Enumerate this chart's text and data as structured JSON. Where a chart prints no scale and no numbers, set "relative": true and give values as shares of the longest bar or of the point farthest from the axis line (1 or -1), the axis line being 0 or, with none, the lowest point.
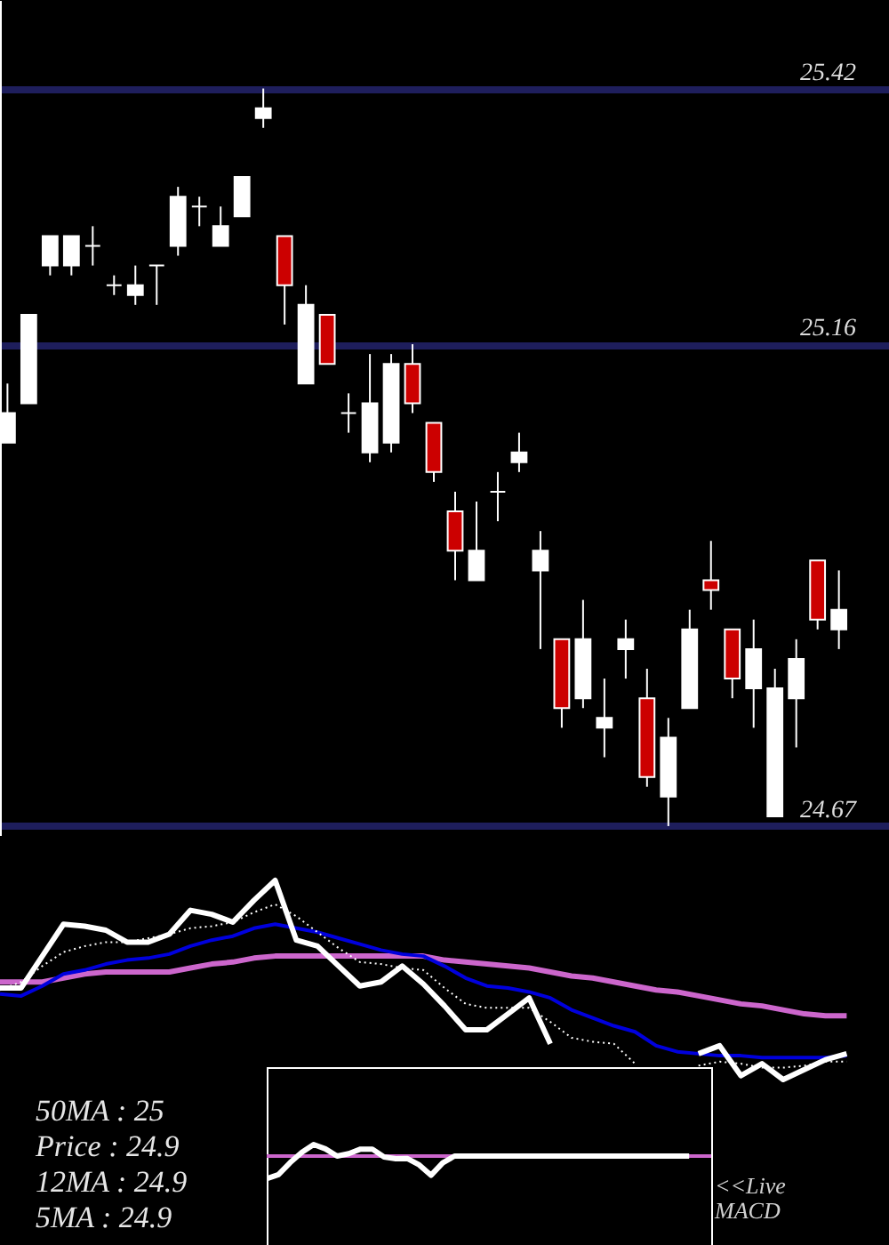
{
  "chart_data": [
    {
      "type": "candlestick",
      "categories": [
        null,
        null,
        null,
        null,
        null,
        null,
        null,
        null,
        null,
        null,
        null,
        null,
        null,
        null,
        null,
        null,
        null,
        null,
        null,
        null,
        null,
        null,
        null,
        null,
        null,
        null,
        null,
        null,
        null,
        null,
        null,
        null,
        null,
        null,
        null,
        null,
        null,
        null,
        null,
        null
      ],
      "ohlc": [
        [
          25.06,
          25.12,
          25.06,
          25.09
        ],
        [
          25.1,
          25.19,
          25.1,
          25.19
        ],
        [
          25.24,
          25.27,
          25.23,
          25.27
        ],
        [
          25.24,
          25.27,
          25.23,
          25.27
        ],
        [
          25.26,
          25.28,
          25.24,
          25.26
        ],
        [
          25.22,
          25.23,
          25.21,
          25.22
        ],
        [
          25.21,
          25.24,
          25.2,
          25.22
        ],
        [
          25.24,
          25.24,
          25.2,
          25.24
        ],
        [
          25.26,
          25.32,
          25.25,
          25.31
        ],
        [
          25.3,
          25.31,
          25.28,
          25.3
        ],
        [
          25.26,
          25.3,
          25.26,
          25.28
        ],
        [
          25.29,
          25.33,
          25.29,
          25.33
        ],
        [
          25.39,
          25.42,
          25.38,
          25.4
        ],
        [
          25.27,
          25.27,
          25.18,
          25.22
        ],
        [
          25.12,
          25.22,
          25.12,
          25.2
        ],
        [
          25.19,
          25.19,
          25.14,
          25.14
        ],
        [
          25.09,
          25.11,
          25.07,
          25.09
        ],
        [
          25.05,
          25.15,
          25.04,
          25.1
        ],
        [
          25.06,
          25.15,
          25.05,
          25.14
        ],
        [
          25.14,
          25.16,
          25.09,
          25.1
        ],
        [
          25.08,
          25.08,
          25.02,
          25.03
        ],
        [
          24.99,
          25.01,
          24.92,
          24.95
        ],
        [
          24.92,
          25.0,
          24.92,
          24.95
        ],
        [
          25.01,
          25.03,
          24.98,
          25.01
        ],
        [
          25.04,
          25.07,
          25.03,
          25.05
        ],
        [
          24.93,
          24.97,
          24.85,
          24.95
        ],
        [
          24.86,
          24.86,
          24.77,
          24.79
        ],
        [
          24.8,
          24.9,
          24.79,
          24.86
        ],
        [
          24.77,
          24.82,
          24.74,
          24.78
        ],
        [
          24.85,
          24.88,
          24.82,
          24.86
        ],
        [
          24.8,
          24.83,
          24.71,
          24.72
        ],
        [
          24.7,
          24.78,
          24.67,
          24.76
        ],
        [
          24.79,
          24.89,
          24.79,
          24.87
        ],
        [
          24.92,
          24.96,
          24.89,
          24.91
        ],
        [
          24.87,
          24.87,
          24.8,
          24.82
        ],
        [
          24.81,
          24.88,
          24.77,
          24.85
        ],
        [
          24.68,
          24.83,
          24.68,
          24.81
        ],
        [
          24.8,
          24.86,
          24.75,
          24.84
        ],
        [
          24.94,
          24.94,
          24.87,
          24.88
        ],
        [
          24.87,
          24.93,
          24.85,
          24.89
        ]
      ],
      "colors": [
        "#ffffff",
        "#ffffff",
        "#ffffff",
        "#ffffff",
        "#ffffff",
        "#ffffff",
        "#ffffff",
        "#ffffff",
        "#ffffff",
        "#ffffff",
        "#ffffff",
        "#ffffff",
        "#ffffff",
        "#cc0000",
        "#ffffff",
        "#cc0000",
        "#ffffff",
        "#ffffff",
        "#ffffff",
        "#cc0000",
        "#cc0000",
        "#cc0000",
        "#ffffff",
        "#ffffff",
        "#ffffff",
        "#ffffff",
        "#cc0000",
        "#ffffff",
        "#ffffff",
        "#ffffff",
        "#cc0000",
        "#ffffff",
        "#ffffff",
        "#cc0000",
        "#cc0000",
        "#ffffff",
        "#ffffff",
        "#ffffff",
        "#cc0000",
        "#ffffff"
      ],
      "ylim": [
        24.66,
        25.51
      ],
      "yticks": [
        24.67,
        25.16,
        25.42
      ],
      "grid": "y",
      "tick_labels": "y"
    },
    {
      "type": "line",
      "relative": true,
      "categories": [
        null,
        null,
        null,
        null,
        null,
        null,
        null,
        null,
        null,
        null,
        null,
        null,
        null,
        null,
        null,
        null,
        null,
        null,
        null,
        null,
        null,
        null,
        null,
        null,
        null,
        null,
        null,
        null,
        null,
        null,
        null,
        null,
        null,
        null,
        null,
        null,
        null,
        null,
        null,
        null,
        null
      ],
      "series": [
        {
          "color": "#cc66cc",
          "values": [
            0.49,
            0.49,
            0.49,
            0.51,
            0.53,
            0.54,
            0.54,
            0.54,
            0.54,
            0.56,
            0.58,
            0.59,
            0.61,
            0.62,
            0.62,
            0.62,
            0.62,
            0.62,
            0.62,
            0.62,
            0.62,
            0.6,
            0.59,
            0.58,
            0.57,
            0.56,
            0.54,
            0.52,
            0.51,
            0.49,
            0.47,
            0.45,
            0.44,
            0.42,
            0.4,
            0.38,
            0.37,
            0.35,
            0.33,
            0.32,
            0.32
          ]
        },
        {
          "color": "#0000dd",
          "values": [
            0.43,
            0.42,
            0.47,
            0.53,
            0.55,
            0.58,
            0.6,
            0.61,
            0.63,
            0.67,
            0.7,
            0.72,
            0.76,
            0.78,
            0.76,
            0.74,
            0.71,
            0.68,
            0.65,
            0.63,
            0.62,
            0.57,
            0.51,
            0.47,
            0.46,
            0.44,
            0.41,
            0.35,
            0.31,
            0.27,
            0.24,
            0.17,
            0.14,
            0.13,
            0.12,
            0.12,
            0.11,
            0.11,
            0.11,
            0.11,
            0.12
          ]
        },
        {
          "color": "#ffffff",
          "line_style": "dotted",
          "values": [
            0.45,
            0.49,
            0.57,
            0.64,
            0.67,
            0.69,
            0.69,
            0.71,
            0.73,
            0.76,
            0.77,
            0.79,
            0.84,
            0.88,
            0.82,
            0.74,
            0.66,
            0.59,
            0.58,
            0.56,
            0.55,
            0.46,
            0.38,
            0.36,
            0.36,
            0.36,
            0.29,
            0.21,
            0.19,
            0.18,
            0.08,
            null,
            null,
            0.07,
            0.09,
            0.08,
            0.06,
            0.06,
            0.07,
            0.09,
            0.09
          ]
        },
        {
          "color": "#ffffff",
          "values": [
            0.46,
            0.46,
            0.62,
            0.78,
            0.77,
            0.75,
            0.69,
            0.69,
            0.73,
            0.85,
            0.83,
            0.79,
            0.9,
            1,
            0.7,
            0.67,
            0.57,
            0.47,
            0.49,
            0.57,
            0.48,
            0.37,
            0.25,
            0.25,
            0.33,
            0.41,
            0.18,
            null,
            null,
            null,
            null,
            null,
            null,
            0.13,
            0.17,
            0.02,
            0.08,
            0,
            0.05,
            0.1,
            0.13
          ]
        }
      ],
      "annotations": [
        "50MA : 25",
        "Price : 24.9",
        "12MA : 24.9",
        "5MA : 24.9"
      ],
      "tick_labels": false
    },
    {
      "type": "line",
      "relative": true,
      "categories": [
        null,
        null,
        null,
        null,
        null,
        null,
        null,
        null,
        null,
        null,
        null,
        null,
        null,
        null,
        null,
        null,
        null,
        null,
        null,
        null,
        null,
        null,
        null,
        null,
        null,
        null,
        null,
        null,
        null,
        null,
        null,
        null,
        null,
        null,
        null,
        null,
        null
      ],
      "series": [
        {
          "color": "#ffffff",
          "values": [
            -1,
            -0.82,
            -0.29,
            0.17,
            0.51,
            0.32,
            0,
            0.11,
            0.31,
            0.31,
            -0.04,
            -0.12,
            -0.11,
            -0.39,
            -0.85,
            -0.3,
            0,
            0,
            0,
            0,
            0,
            0,
            0,
            0,
            0,
            0,
            0,
            0,
            0,
            0,
            0,
            0,
            0,
            0,
            0,
            0,
            0
          ]
        }
      ],
      "ref_lines": [
        {
          "axis": "y",
          "value": 0,
          "color": "#cc66cc"
        }
      ],
      "annotations": [
        "<<Live MACD"
      ],
      "tick_labels": false
    }
  ]
}
